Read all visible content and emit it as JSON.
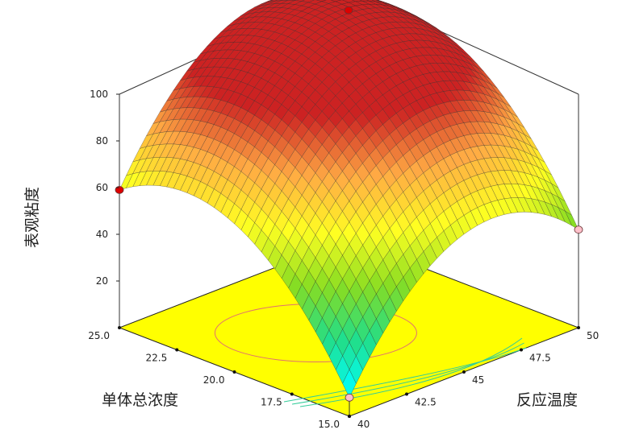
{
  "chart_data": {
    "type": "surface3d",
    "zlabel": "表观粘度",
    "ylabel": "单体总浓度",
    "xlabel": "反应温度",
    "z_ticks": [
      20,
      40,
      60,
      80,
      100
    ],
    "y_ticks": [
      25.0,
      22.5,
      20.0,
      17.5,
      15.0
    ],
    "y_tick_labels": [
      "25.0",
      "22.5",
      "20.0",
      "17.5",
      "15.0"
    ],
    "x_ticks": [
      40,
      42.5,
      45,
      47.5,
      50
    ],
    "x_tick_labels": [
      "40",
      "42.5",
      "45",
      "47.5",
      "50"
    ],
    "xlim": [
      40,
      50
    ],
    "ylim": [
      15,
      25
    ],
    "zlim": [
      0,
      100
    ],
    "floor_color": "#ffff00",
    "corner_points": [
      {
        "temperature": 40,
        "concentration": 15,
        "viscosity": 8,
        "color": "#ffc0cb"
      },
      {
        "temperature": 40,
        "concentration": 25,
        "viscosity": 59,
        "color": "#dd0000"
      },
      {
        "temperature": 50,
        "concentration": 25,
        "viscosity": 98,
        "color": "#dd0000"
      },
      {
        "temperature": 50,
        "concentration": 15,
        "viscosity": 42,
        "color": "#ffc0cb"
      }
    ],
    "surface_model": "quadratic",
    "colormap": [
      "#00ffff",
      "#22dd88",
      "#88dd22",
      "#ffff22",
      "#ffaa44",
      "#cc2222"
    ]
  }
}
